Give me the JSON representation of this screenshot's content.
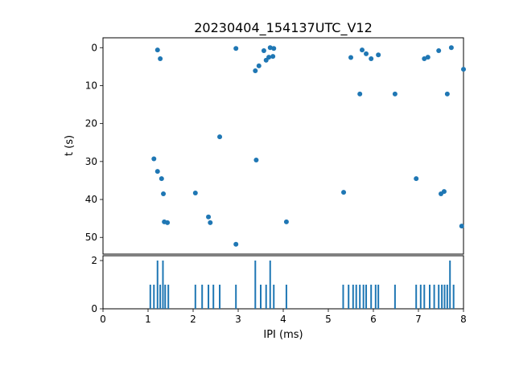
{
  "figure": {
    "accent_color": "#1f77b4",
    "background": "#ffffff",
    "spine_color": "#000000"
  },
  "chart_data": [
    {
      "type": "scatter",
      "title": "20230404_154137UTC_V12",
      "xlabel": "",
      "ylabel": "t (s)",
      "xlim": [
        0,
        8
      ],
      "ylim": [
        -2.6,
        54.4
      ],
      "y_inverted": true,
      "yticks": [
        0,
        10,
        20,
        30,
        40,
        50
      ],
      "marker_color": "#1f77b4",
      "points": [
        [
          1.21,
          0.6
        ],
        [
          1.27,
          2.9
        ],
        [
          1.13,
          29.3
        ],
        [
          1.21,
          32.6
        ],
        [
          1.3,
          34.5
        ],
        [
          1.34,
          38.5
        ],
        [
          1.36,
          45.9
        ],
        [
          1.43,
          46.1
        ],
        [
          2.05,
          38.3
        ],
        [
          2.34,
          44.6
        ],
        [
          2.38,
          46.1
        ],
        [
          2.59,
          23.5
        ],
        [
          2.95,
          0.2
        ],
        [
          2.95,
          51.8
        ],
        [
          3.38,
          6.1
        ],
        [
          3.46,
          4.8
        ],
        [
          3.4,
          29.6
        ],
        [
          3.57,
          0.8
        ],
        [
          3.62,
          3.3
        ],
        [
          3.68,
          2.5
        ],
        [
          3.71,
          0.0
        ],
        [
          3.77,
          2.3
        ],
        [
          3.79,
          0.2
        ],
        [
          4.07,
          45.9
        ],
        [
          5.34,
          38.1
        ],
        [
          5.5,
          2.6
        ],
        [
          5.7,
          12.2
        ],
        [
          5.75,
          0.6
        ],
        [
          5.84,
          1.6
        ],
        [
          5.95,
          2.9
        ],
        [
          6.11,
          1.9
        ],
        [
          6.48,
          12.2
        ],
        [
          6.95,
          34.5
        ],
        [
          7.13,
          2.9
        ],
        [
          7.21,
          2.5
        ],
        [
          7.45,
          0.8
        ],
        [
          7.5,
          38.5
        ],
        [
          7.57,
          37.9
        ],
        [
          7.64,
          12.2
        ],
        [
          7.73,
          0.0
        ],
        [
          7.96,
          47.0
        ],
        [
          8.0,
          5.7
        ]
      ]
    },
    {
      "type": "bar",
      "title": "",
      "xlabel": "IPI (ms)",
      "ylabel": "",
      "xlim": [
        0,
        8
      ],
      "ylim": [
        0,
        2.2
      ],
      "xticks": [
        0,
        1,
        2,
        3,
        4,
        5,
        6,
        7,
        8
      ],
      "yticks": [
        0,
        2
      ],
      "bar_color": "#1f77b4",
      "bars": [
        [
          1.05,
          1
        ],
        [
          1.13,
          1
        ],
        [
          1.21,
          2
        ],
        [
          1.27,
          1
        ],
        [
          1.33,
          2
        ],
        [
          1.38,
          1
        ],
        [
          1.45,
          1
        ],
        [
          2.05,
          1
        ],
        [
          2.2,
          1
        ],
        [
          2.34,
          1
        ],
        [
          2.45,
          1
        ],
        [
          2.59,
          1
        ],
        [
          2.95,
          1
        ],
        [
          3.38,
          2
        ],
        [
          3.5,
          1
        ],
        [
          3.62,
          1
        ],
        [
          3.71,
          2
        ],
        [
          3.79,
          1
        ],
        [
          4.07,
          1
        ],
        [
          5.33,
          1
        ],
        [
          5.45,
          1
        ],
        [
          5.55,
          1
        ],
        [
          5.62,
          1
        ],
        [
          5.7,
          1
        ],
        [
          5.78,
          1
        ],
        [
          5.84,
          1
        ],
        [
          5.95,
          1
        ],
        [
          6.05,
          1
        ],
        [
          6.11,
          1
        ],
        [
          6.48,
          1
        ],
        [
          6.95,
          1
        ],
        [
          7.05,
          1
        ],
        [
          7.13,
          1
        ],
        [
          7.25,
          1
        ],
        [
          7.35,
          1
        ],
        [
          7.45,
          1
        ],
        [
          7.52,
          1
        ],
        [
          7.58,
          1
        ],
        [
          7.64,
          1
        ],
        [
          7.7,
          2
        ],
        [
          7.78,
          1
        ]
      ]
    }
  ]
}
